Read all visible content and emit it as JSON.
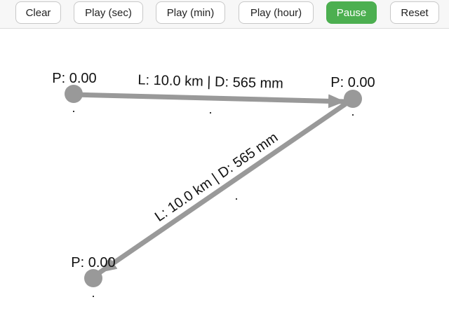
{
  "toolbar": {
    "clear_label": "Clear",
    "play_sec_label": "Play (sec)",
    "play_min_label": "Play (min)",
    "play_hour_label": "Play (hour)",
    "pause_label": "Pause",
    "reset_label": "Reset"
  },
  "colors": {
    "pause_button": "#4caf50",
    "node": "#999999",
    "pipe": "#999999"
  },
  "network": {
    "nodes": [
      {
        "id": "node-1",
        "pressure_label": "P: 0.00",
        "sub_label": "."
      },
      {
        "id": "node-2",
        "pressure_label": "P: 0.00",
        "sub_label": "."
      },
      {
        "id": "node-3",
        "pressure_label": "P: 0.00",
        "sub_label": "."
      }
    ],
    "pipes": [
      {
        "from": "node-1",
        "to": "node-2",
        "label": "L: 10.0 km | D: 565 mm",
        "sub_label": "."
      },
      {
        "from": "node-2",
        "to": "node-3",
        "label": "L: 10.0 km | D: 565 mm",
        "sub_label": "."
      }
    ]
  }
}
